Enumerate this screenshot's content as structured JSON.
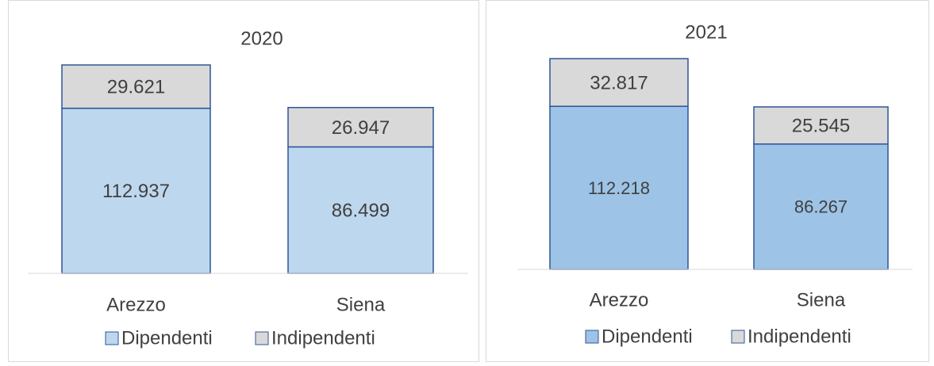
{
  "chart_data": [
    {
      "type": "bar",
      "stacked": true,
      "title": "2020",
      "categories": [
        "Arezzo",
        "Siena"
      ],
      "series": [
        {
          "name": "Dipendenti",
          "color": "#bdd7ee",
          "values": [
            112937,
            86499
          ],
          "value_labels": [
            "112.937",
            "86.499"
          ]
        },
        {
          "name": "Indipendenti",
          "color": "#d9d9d9",
          "values": [
            29621,
            26947
          ],
          "value_labels": [
            "29.621",
            "26.947"
          ]
        }
      ]
    },
    {
      "type": "bar",
      "stacked": true,
      "title": "2021",
      "categories": [
        "Arezzo",
        "Siena"
      ],
      "series": [
        {
          "name": "Dipendenti",
          "color": "#9dc3e6",
          "values": [
            112218,
            86267
          ],
          "value_labels": [
            "112.218",
            "86.267"
          ]
        },
        {
          "name": "Indipendenti",
          "color": "#d9d9d9",
          "values": [
            32817,
            25545
          ],
          "value_labels": [
            "32.817",
            "25.545"
          ]
        }
      ]
    }
  ]
}
